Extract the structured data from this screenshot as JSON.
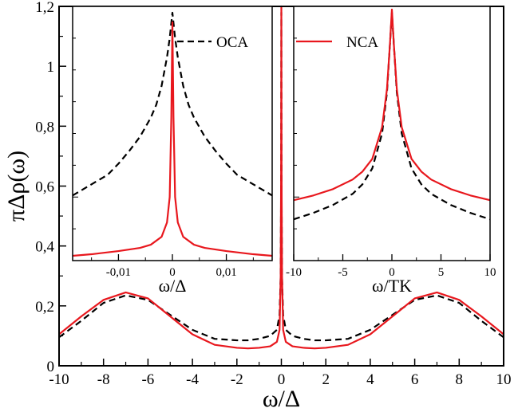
{
  "colors": {
    "oca": "#000000",
    "nca": "#e8171d",
    "frame": "#000000",
    "background": "#ffffff"
  },
  "chart_data": [
    {
      "id": "main",
      "type": "line",
      "title": "",
      "xlabel": "ω/Δ",
      "ylabel": "πΔρ(ω)",
      "xlim": [
        -10,
        10
      ],
      "ylim": [
        0,
        1.2
      ],
      "x_ticks": [
        -10,
        -8,
        -6,
        -4,
        -2,
        0,
        2,
        4,
        6,
        8,
        10
      ],
      "x_tick_labels": [
        "-10",
        "-8",
        "-6",
        "-4",
        "-2",
        "0",
        "2",
        "4",
        "6",
        "8",
        "10"
      ],
      "y_ticks": [
        0,
        0.2,
        0.4,
        0.6,
        0.8,
        1.0,
        1.2
      ],
      "y_tick_labels": [
        "0",
        "0,2",
        "0,4",
        "0,6",
        "0,8",
        "1",
        "1,2"
      ],
      "grid": false,
      "series": [
        {
          "name": "OCA",
          "style": "dashed",
          "color": "#000000",
          "x": [
            -10,
            -9,
            -8,
            -7,
            -6,
            -5,
            -4,
            -3,
            -2,
            -1.5,
            -1,
            -0.5,
            -0.2,
            -0.08,
            -0.03,
            -0.01,
            0,
            0.01,
            0.03,
            0.08,
            0.2,
            0.5,
            1,
            1.5,
            2,
            3,
            4,
            5,
            6,
            7,
            8,
            9,
            10
          ],
          "y": [
            0.095,
            0.15,
            0.21,
            0.235,
            0.22,
            0.17,
            0.12,
            0.09,
            0.085,
            0.085,
            0.09,
            0.1,
            0.12,
            0.17,
            0.3,
            0.6,
            1.18,
            0.6,
            0.3,
            0.17,
            0.12,
            0.1,
            0.09,
            0.085,
            0.085,
            0.09,
            0.12,
            0.17,
            0.22,
            0.235,
            0.21,
            0.15,
            0.095
          ]
        },
        {
          "name": "NCA",
          "style": "solid",
          "color": "#e8171d",
          "x": [
            -10,
            -9,
            -8,
            -7,
            -6,
            -5,
            -4,
            -3,
            -2,
            -1.5,
            -1,
            -0.5,
            -0.2,
            -0.08,
            -0.03,
            -0.01,
            0,
            0.01,
            0.03,
            0.08,
            0.2,
            0.5,
            1,
            1.5,
            2,
            3,
            4,
            5,
            6,
            7,
            8,
            9,
            10
          ],
          "y": [
            0.105,
            0.165,
            0.22,
            0.245,
            0.225,
            0.165,
            0.105,
            0.07,
            0.06,
            0.058,
            0.06,
            0.065,
            0.08,
            0.12,
            0.3,
            0.65,
            1.2,
            0.65,
            0.3,
            0.12,
            0.08,
            0.065,
            0.06,
            0.058,
            0.06,
            0.07,
            0.105,
            0.165,
            0.225,
            0.245,
            0.22,
            0.165,
            0.105
          ]
        }
      ]
    },
    {
      "id": "inset_left",
      "type": "line",
      "title": "",
      "xlabel": "ω/Δ",
      "ylabel": "",
      "xlim": [
        -0.0185,
        0.0185
      ],
      "ylim": [
        0.4,
        1.2
      ],
      "x_ticks": [
        -0.01,
        0,
        0.01
      ],
      "x_tick_labels": [
        "-0,01",
        "0",
        "0,01"
      ],
      "legend": [
        {
          "label": "OCA",
          "style": "dashed",
          "color": "#000000"
        }
      ],
      "legend_position": "top-right",
      "series": [
        {
          "name": "OCA",
          "style": "dashed",
          "color": "#000000",
          "x": [
            -0.0185,
            -0.015,
            -0.012,
            -0.01,
            -0.008,
            -0.006,
            -0.004,
            -0.003,
            -0.002,
            -0.001,
            -0.0005,
            0,
            0.0005,
            0.001,
            0.002,
            0.003,
            0.004,
            0.006,
            0.008,
            0.01,
            0.012,
            0.015,
            0.0185
          ],
          "y": [
            0.605,
            0.64,
            0.67,
            0.705,
            0.745,
            0.79,
            0.85,
            0.89,
            0.95,
            1.04,
            1.1,
            1.18,
            1.1,
            1.04,
            0.95,
            0.89,
            0.85,
            0.79,
            0.745,
            0.705,
            0.67,
            0.64,
            0.605
          ]
        },
        {
          "name": "NCA",
          "style": "solid",
          "color": "#e8171d",
          "x": [
            -0.0185,
            -0.015,
            -0.01,
            -0.006,
            -0.004,
            -0.002,
            -0.001,
            -0.0005,
            -0.0002,
            0,
            0.0002,
            0.0005,
            0.001,
            0.002,
            0.004,
            0.006,
            0.01,
            0.015,
            0.0185
          ],
          "y": [
            0.415,
            0.42,
            0.43,
            0.44,
            0.45,
            0.475,
            0.52,
            0.6,
            0.85,
            1.15,
            0.85,
            0.6,
            0.52,
            0.475,
            0.45,
            0.44,
            0.43,
            0.42,
            0.415
          ]
        }
      ]
    },
    {
      "id": "inset_right",
      "type": "line",
      "title": "",
      "xlabel": "ω/TK",
      "ylabel": "",
      "xlim": [
        -10,
        10
      ],
      "ylim": [
        0.4,
        1.2
      ],
      "x_ticks": [
        -10,
        -5,
        0,
        5,
        10
      ],
      "x_tick_labels": [
        "-10",
        "-5",
        "0",
        "5",
        "10"
      ],
      "legend": [
        {
          "label": "NCA",
          "style": "solid",
          "color": "#e8171d"
        }
      ],
      "legend_position": "top-right",
      "series": [
        {
          "name": "OCA",
          "style": "dashed",
          "color": "#000000",
          "x": [
            -10,
            -8,
            -6,
            -4,
            -3,
            -2,
            -1,
            -0.5,
            -0.2,
            0,
            0.2,
            0.5,
            1,
            2,
            3,
            4,
            6,
            8,
            10
          ],
          "y": [
            0.53,
            0.55,
            0.575,
            0.61,
            0.64,
            0.69,
            0.8,
            0.93,
            1.08,
            1.18,
            1.08,
            0.93,
            0.8,
            0.69,
            0.64,
            0.61,
            0.575,
            0.55,
            0.53
          ]
        },
        {
          "name": "NCA",
          "style": "solid",
          "color": "#e8171d",
          "x": [
            -10,
            -8,
            -6,
            -4,
            -3,
            -2,
            -1,
            -0.5,
            -0.2,
            0,
            0.2,
            0.5,
            1,
            2,
            3,
            4,
            6,
            8,
            10
          ],
          "y": [
            0.59,
            0.605,
            0.625,
            0.655,
            0.68,
            0.72,
            0.82,
            0.94,
            1.08,
            1.19,
            1.08,
            0.94,
            0.82,
            0.72,
            0.68,
            0.655,
            0.625,
            0.605,
            0.59
          ]
        }
      ]
    }
  ]
}
